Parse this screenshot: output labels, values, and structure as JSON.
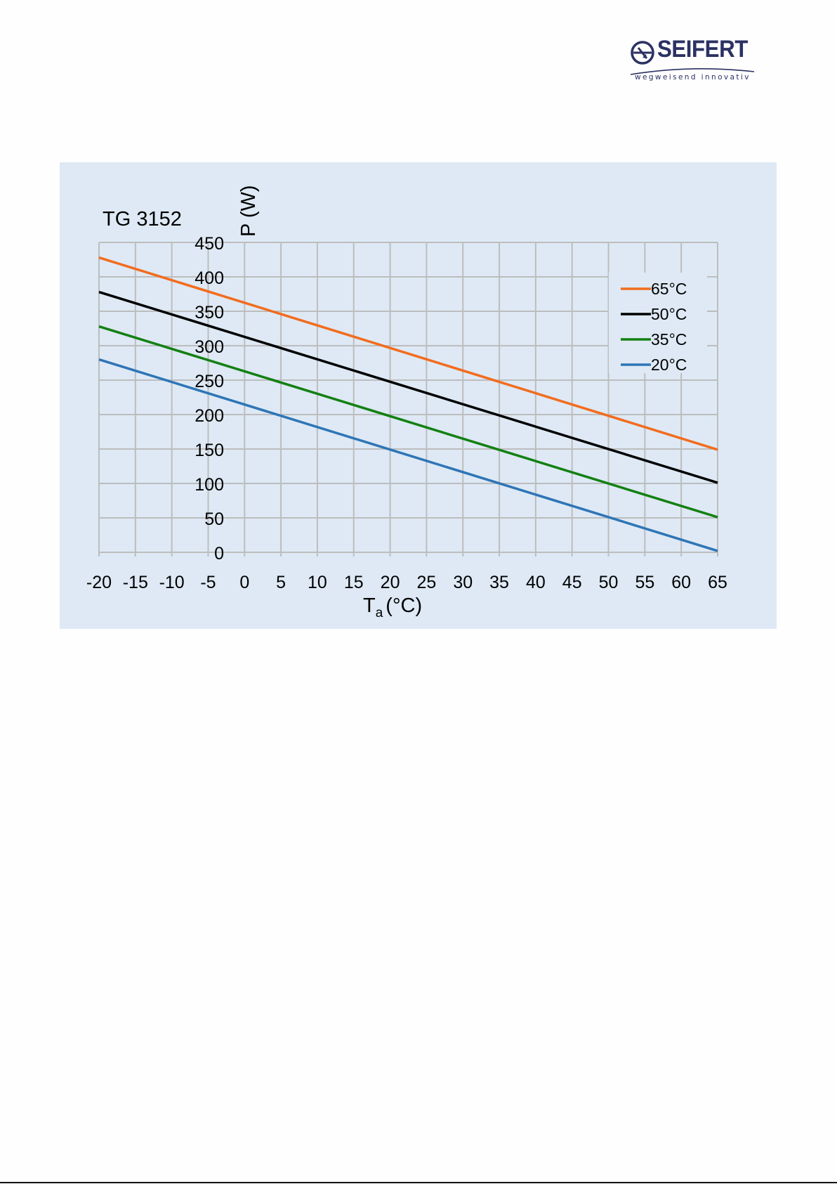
{
  "logo": {
    "wordmark": "SEIFERT",
    "tagline": "wegweisend innovativ",
    "brand_color": "#2b3163"
  },
  "chart_data": {
    "type": "line",
    "title": "TG 3152",
    "xlabel_main": "T",
    "xlabel_sub": "a",
    "xlabel_unit": "(°C)",
    "ylabel": "P (W)",
    "xlim": [
      -20,
      65
    ],
    "ylim": [
      0,
      450
    ],
    "xticks": [
      -20,
      -15,
      -10,
      -5,
      0,
      5,
      10,
      15,
      20,
      25,
      30,
      35,
      40,
      45,
      50,
      55,
      60,
      65
    ],
    "yticks": [
      0,
      50,
      100,
      150,
      200,
      250,
      300,
      350,
      400,
      450
    ],
    "grid": true,
    "legend_position": "top-right",
    "background": "#dee9f5",
    "grid_color": "#bdbdbd",
    "series": [
      {
        "name": "65°C",
        "color": "#f26c1e",
        "x": [
          -20,
          65
        ],
        "y": [
          428,
          149
        ]
      },
      {
        "name": "50°C",
        "color": "#000000",
        "x": [
          -20,
          65
        ],
        "y": [
          378,
          101
        ]
      },
      {
        "name": "35°C",
        "color": "#138012",
        "x": [
          -20,
          65
        ],
        "y": [
          328,
          51
        ]
      },
      {
        "name": "20°C",
        "color": "#2e75b6",
        "x": [
          -20,
          65
        ],
        "y": [
          280,
          2
        ]
      }
    ]
  }
}
